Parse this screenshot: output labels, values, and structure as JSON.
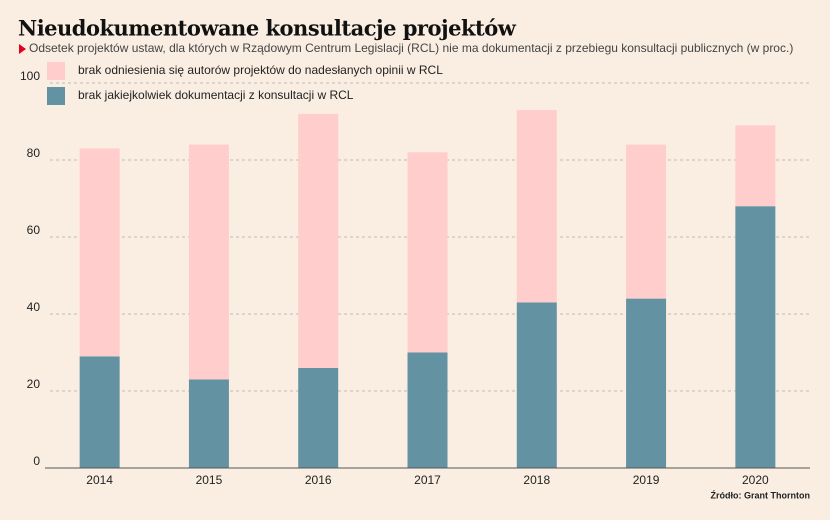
{
  "chart_data": {
    "type": "stacked-bar",
    "title": "Nieudokumentowane konsultacje projektów",
    "subtitle": "Odsetek projektów ustaw, dla których w Rządowym Centrum Legislacji (RCL) nie ma dokumentacji z przebiegu konsultacji publicznych (w proc.)",
    "source": "Źródło: Grant Thornton",
    "categories": [
      "2014",
      "2015",
      "2016",
      "2017",
      "2018",
      "2019",
      "2020"
    ],
    "series": [
      {
        "name": "brak odniesienia się autorów projektów do nadesłanych opinii w RCL",
        "color": "#ffcdcc",
        "values": [
          54,
          61,
          66,
          52,
          50,
          40,
          21
        ]
      },
      {
        "name": "brak jakiejkolwiek dokumentacji z konsultacji w RCL",
        "color": "#6393a3",
        "values": [
          29,
          23,
          26,
          30,
          43,
          44,
          68
        ]
      }
    ],
    "ylim": [
      0,
      100
    ],
    "yticks": [
      0,
      20,
      40,
      60,
      80,
      100
    ],
    "grid": true
  }
}
